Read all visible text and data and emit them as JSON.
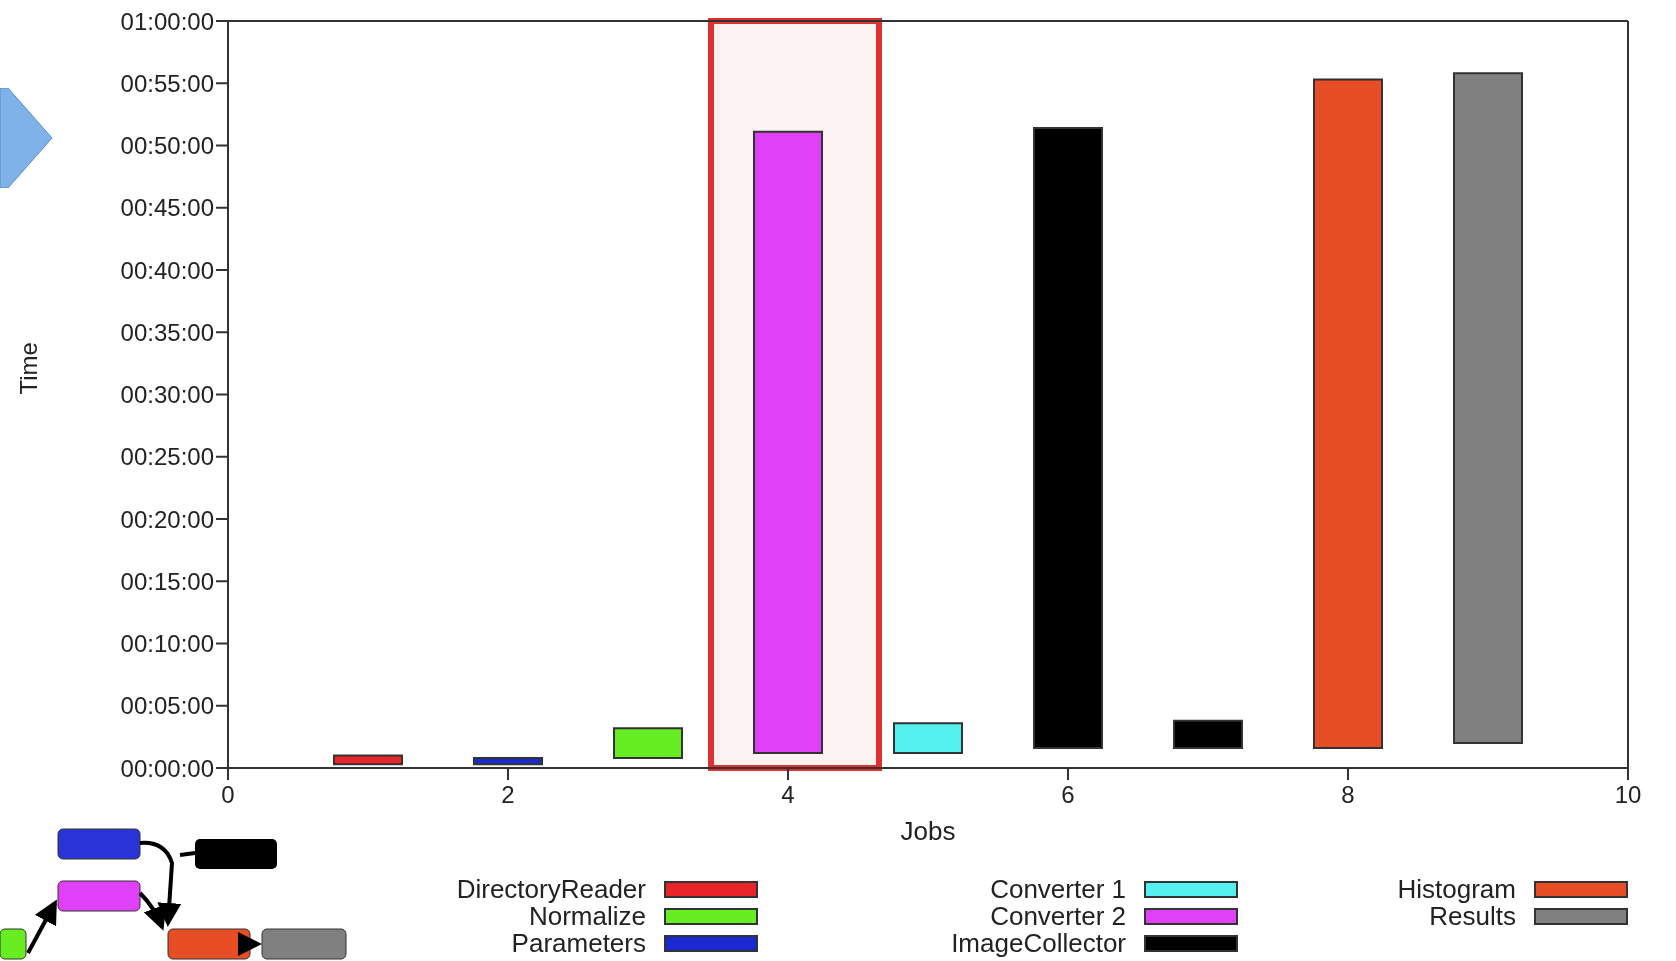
{
  "chart_data": {
    "type": "bar",
    "xlabel": "Jobs",
    "ylabel": "Time",
    "x": [
      1,
      2,
      3,
      4,
      5,
      6,
      7,
      8,
      9
    ],
    "series": [
      {
        "name": "DirectoryReader",
        "color": "#e8262a",
        "base": [
          0.3,
          null,
          null,
          null,
          null,
          null,
          null,
          null,
          null
        ],
        "values": [
          0.7,
          null,
          null,
          null,
          null,
          null,
          null,
          null,
          null
        ]
      },
      {
        "name": "Normalize",
        "color": "#66ee22",
        "base": [
          null,
          null,
          0.8,
          null,
          null,
          null,
          null,
          null,
          null
        ],
        "values": [
          null,
          null,
          2.4,
          null,
          null,
          null,
          null,
          null,
          null
        ]
      },
      {
        "name": "Parameters",
        "color": "#1a2ad0",
        "base": [
          null,
          0.3,
          null,
          null,
          null,
          null,
          null,
          null,
          null
        ],
        "values": [
          null,
          0.5,
          null,
          null,
          null,
          null,
          null,
          null,
          null
        ]
      },
      {
        "name": "Converter 1",
        "color": "#55f0f0",
        "base": [
          null,
          null,
          null,
          null,
          1.2,
          null,
          null,
          null,
          null
        ],
        "values": [
          null,
          null,
          null,
          null,
          2.4,
          null,
          null,
          null,
          null
        ]
      },
      {
        "name": "Converter 2",
        "color": "#e040f8",
        "base": [
          null,
          null,
          null,
          1.2,
          null,
          null,
          null,
          null,
          null
        ],
        "values": [
          null,
          null,
          null,
          49.9,
          null,
          null,
          null,
          null,
          null
        ]
      },
      {
        "name": "ImageCollector",
        "color": "#000000",
        "base": [
          null,
          null,
          null,
          null,
          null,
          1.6,
          1.6,
          null,
          null
        ],
        "values": [
          null,
          null,
          null,
          null,
          null,
          49.8,
          2.2,
          null,
          null
        ]
      },
      {
        "name": "Histogram",
        "color": "#e84e25",
        "base": [
          null,
          null,
          null,
          null,
          null,
          null,
          null,
          1.6,
          null
        ],
        "values": [
          null,
          null,
          null,
          null,
          null,
          null,
          null,
          53.7,
          null
        ]
      },
      {
        "name": "Results",
        "color": "#808080",
        "base": [
          null,
          null,
          null,
          null,
          null,
          null,
          null,
          null,
          2.0
        ],
        "values": [
          null,
          null,
          null,
          null,
          null,
          null,
          null,
          null,
          53.8
        ]
      }
    ],
    "xlim": [
      0,
      10
    ],
    "xticks": [
      0,
      2,
      4,
      6,
      8,
      10
    ],
    "ylim": [
      0,
      60
    ],
    "yticks": [
      {
        "value": 0,
        "label": "00:00:00"
      },
      {
        "value": 5,
        "label": "00:05:00"
      },
      {
        "value": 10,
        "label": "00:10:00"
      },
      {
        "value": 15,
        "label": "00:15:00"
      },
      {
        "value": 20,
        "label": "00:20:00"
      },
      {
        "value": 25,
        "label": "00:25:00"
      },
      {
        "value": 30,
        "label": "00:30:00"
      },
      {
        "value": 35,
        "label": "00:35:00"
      },
      {
        "value": 40,
        "label": "00:40:00"
      },
      {
        "value": 45,
        "label": "00:45:00"
      },
      {
        "value": 50,
        "label": "00:50:00"
      },
      {
        "value": 55,
        "label": "00:55:00"
      },
      {
        "value": 60,
        "label": "01:00:00"
      }
    ],
    "bands": [
      {
        "axis": "x",
        "from": 3.45,
        "to": 4.65,
        "color": "#e03030"
      }
    ],
    "legend": "bottom"
  }
}
